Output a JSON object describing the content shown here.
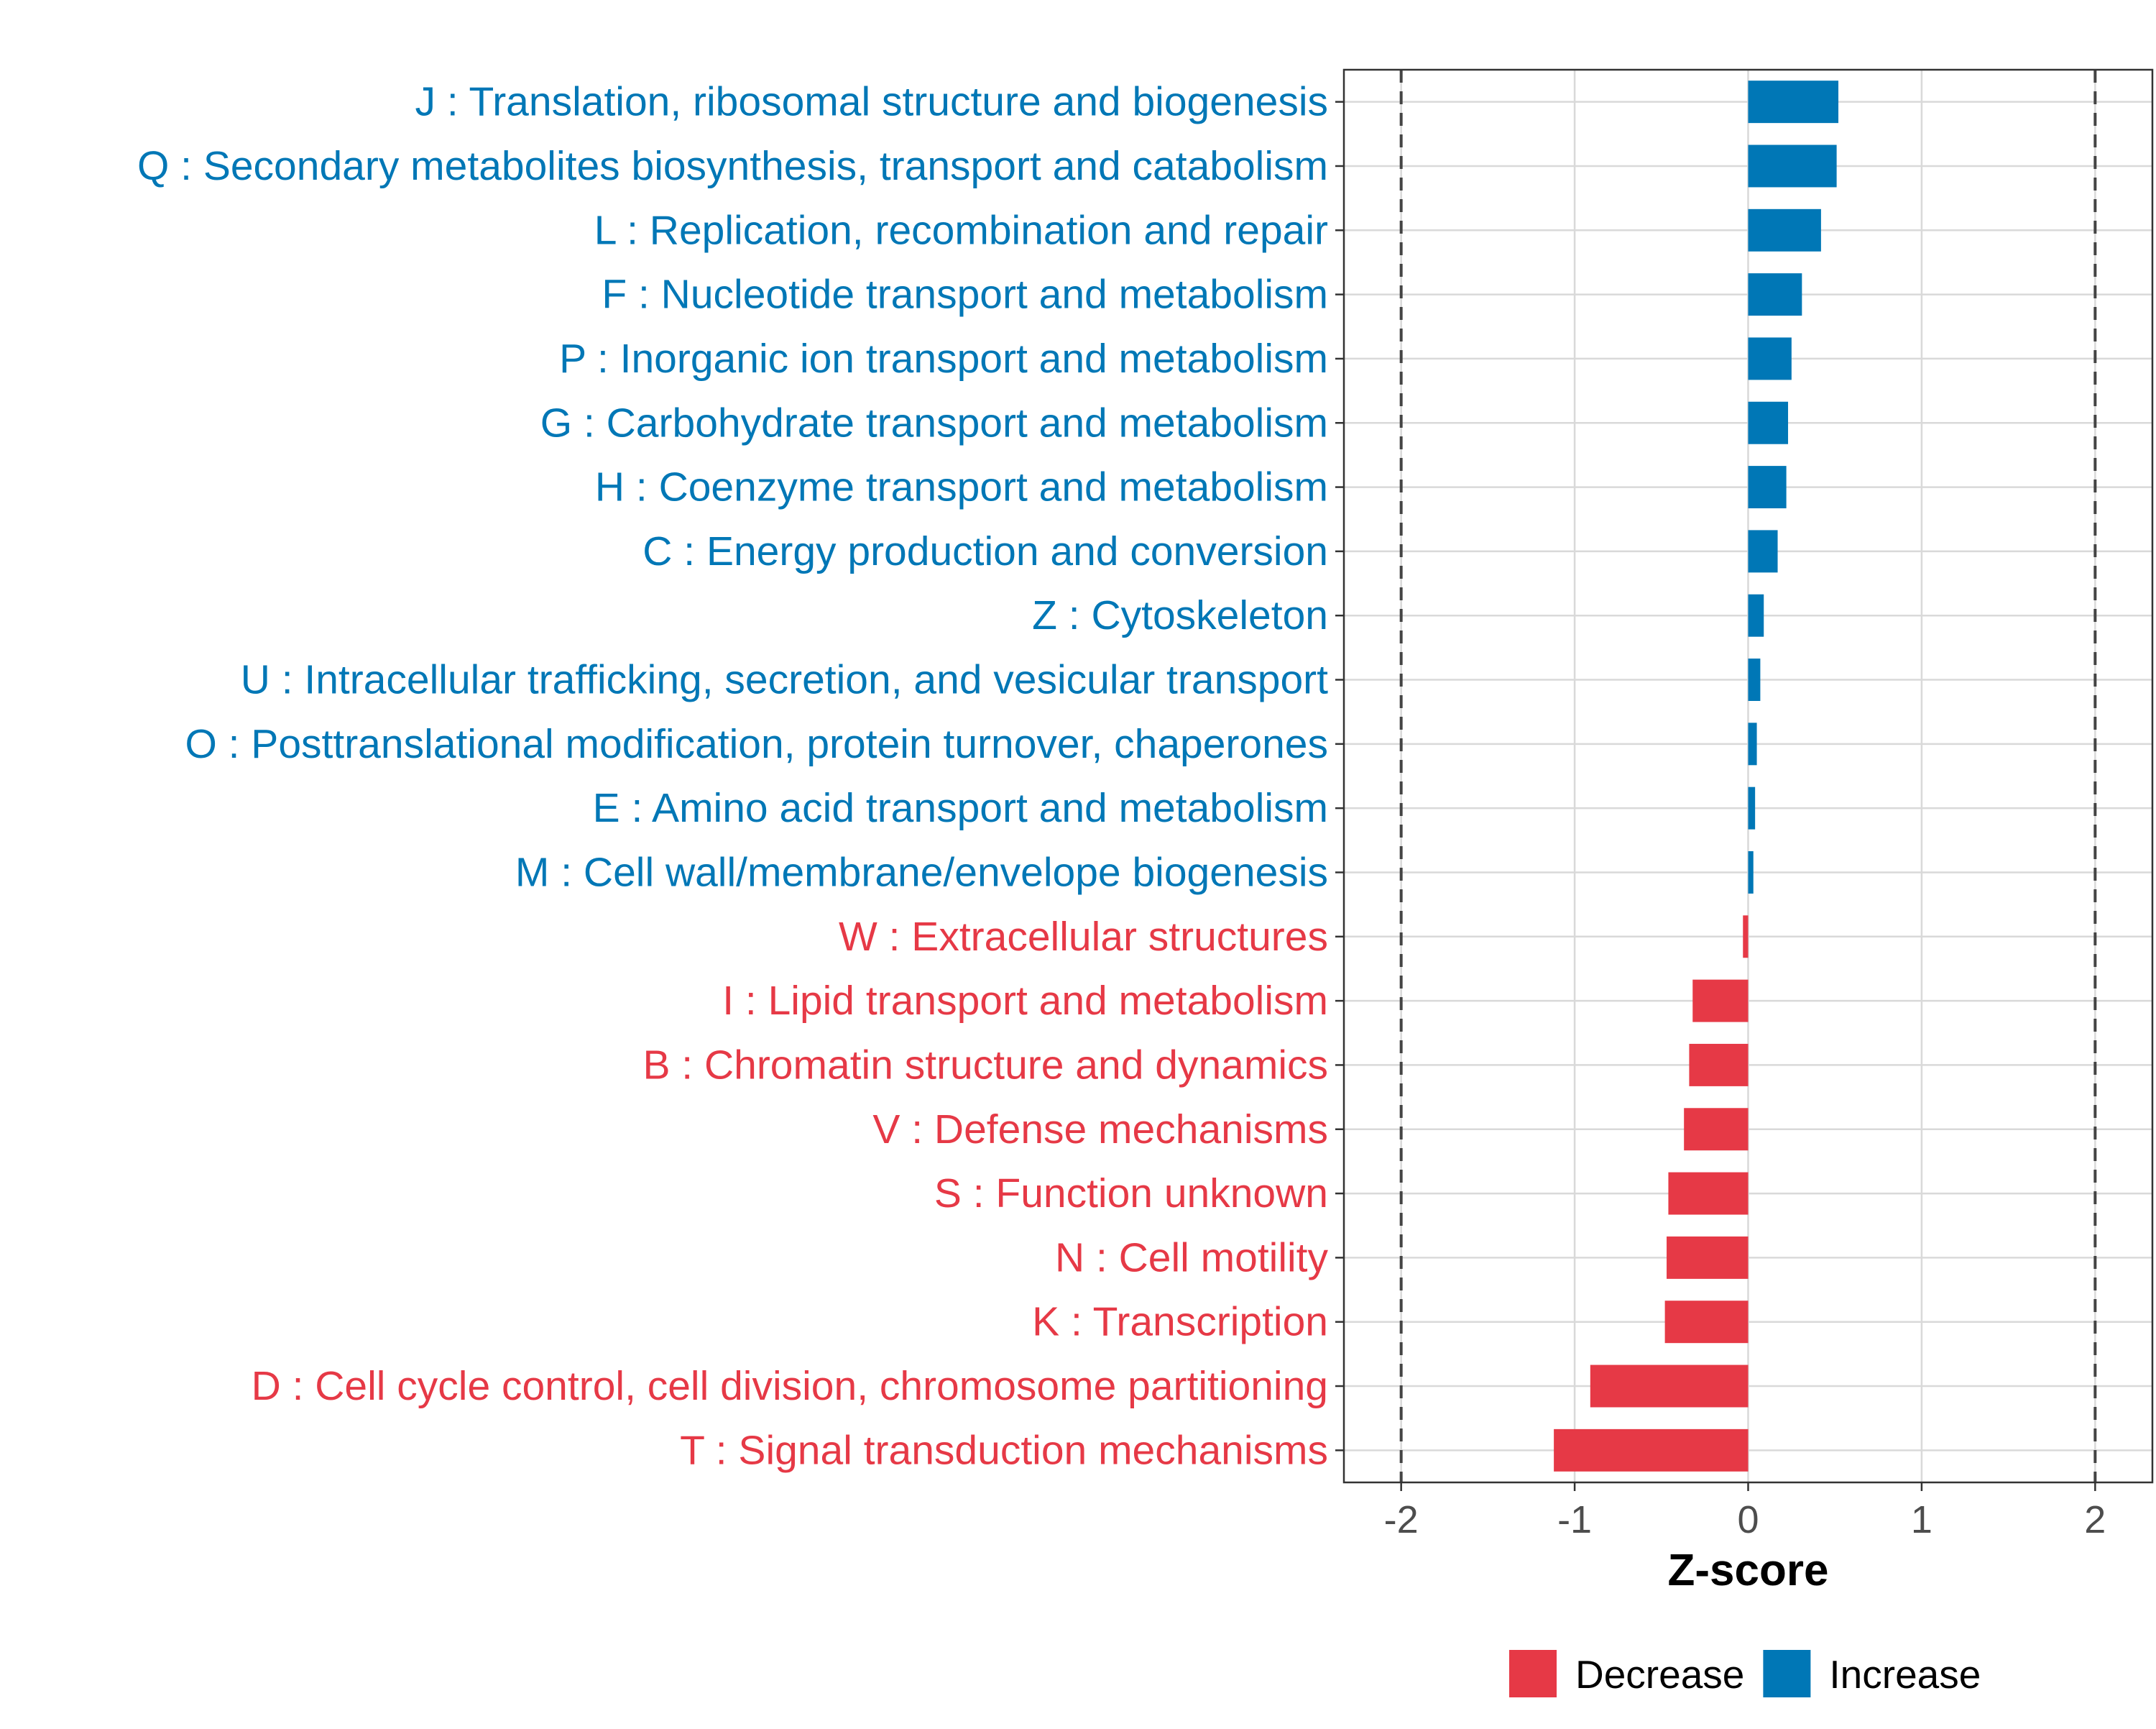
{
  "chart_data": {
    "type": "bar",
    "orientation": "horizontal",
    "title": "",
    "xlabel": "Z-score",
    "ylabel": "",
    "xlim": [
      -2.33,
      2.33
    ],
    "xticks": [
      -2,
      -1,
      0,
      1,
      2
    ],
    "xtick_labels": [
      "-2",
      "-1",
      "0",
      "1",
      "2"
    ],
    "reference_lines": [
      -2,
      2
    ],
    "grid": true,
    "legend_position": "bottom",
    "colors": {
      "Decrease": "#e63946",
      "Increase": "#0077b6"
    },
    "legend": [
      {
        "name": "Decrease",
        "color": "#e63946"
      },
      {
        "name": "Increase",
        "color": "#0077b6"
      }
    ],
    "categories": [
      "J : Translation, ribosomal structure and biogenesis",
      "Q : Secondary metabolites biosynthesis, transport and catabolism",
      "L : Replication, recombination and repair",
      "F : Nucleotide transport and metabolism",
      "P : Inorganic ion transport and metabolism",
      "G : Carbohydrate transport and metabolism",
      "H : Coenzyme transport and metabolism",
      "C : Energy production and conversion",
      "Z : Cytoskeleton",
      "U : Intracellular trafficking, secretion, and vesicular transport",
      "O : Posttranslational modification, protein turnover, chaperones",
      "E : Amino acid transport and metabolism",
      "M : Cell wall/membrane/envelope biogenesis",
      "W : Extracellular structures",
      "I : Lipid transport and metabolism",
      "B : Chromatin structure and dynamics",
      "V : Defense mechanisms",
      "S : Function unknown",
      "N : Cell motility",
      "K : Transcription",
      "D : Cell cycle control, cell division, chromosome partitioning",
      "T : Signal transduction mechanisms"
    ],
    "values": [
      0.52,
      0.51,
      0.42,
      0.31,
      0.25,
      0.23,
      0.22,
      0.17,
      0.09,
      0.07,
      0.05,
      0.04,
      0.03,
      -0.03,
      -0.32,
      -0.34,
      -0.37,
      -0.46,
      -0.47,
      -0.48,
      -0.91,
      -1.12
    ],
    "groups": [
      "Increase",
      "Increase",
      "Increase",
      "Increase",
      "Increase",
      "Increase",
      "Increase",
      "Increase",
      "Increase",
      "Increase",
      "Increase",
      "Increase",
      "Increase",
      "Decrease",
      "Decrease",
      "Decrease",
      "Decrease",
      "Decrease",
      "Decrease",
      "Decrease",
      "Decrease",
      "Decrease"
    ]
  }
}
